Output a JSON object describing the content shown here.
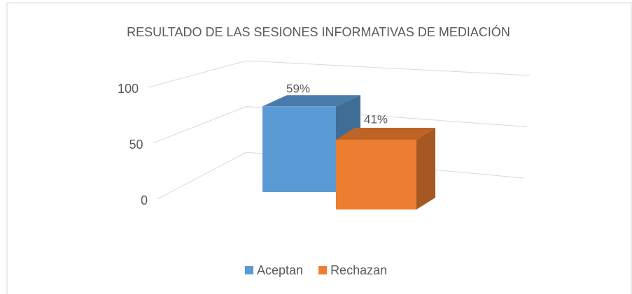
{
  "chart_data": {
    "type": "bar3d",
    "title": "RESULTADO DE LAS SESIONES INFORMATIVAS DE MEDIACIÓN",
    "ylim": [
      0,
      100
    ],
    "yticks": [
      0,
      50,
      100
    ],
    "grid": true,
    "legend": "bottom",
    "series": [
      {
        "name": "Aceptan",
        "color": "#5b9bd5",
        "values": [
          59
        ],
        "value_labels": [
          "59%"
        ]
      },
      {
        "name": "Rechazan",
        "color": "#ed7d31",
        "values": [
          41
        ],
        "value_labels": [
          "41%"
        ]
      }
    ]
  }
}
